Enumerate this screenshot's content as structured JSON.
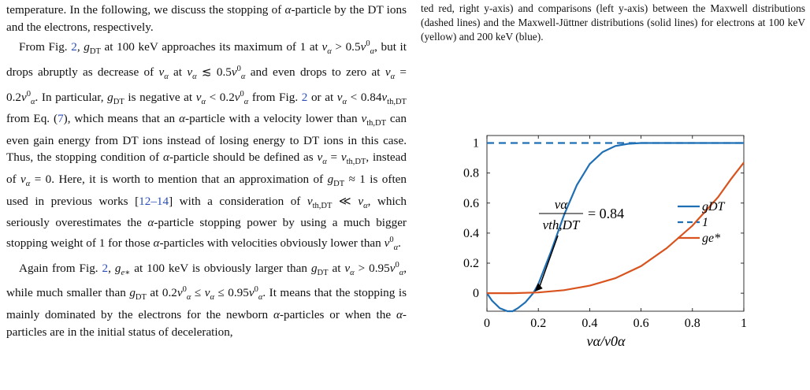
{
  "left_column": {
    "paragraphs": [
      {
        "id": "p0",
        "segments": [
          {
            "t": "temperature. In the following, we discuss the stopping of "
          },
          {
            "t": "α",
            "math": true
          },
          {
            "t": "-particle by the DT ions and the electrons, respectively."
          }
        ]
      },
      {
        "id": "p1",
        "segments": [
          {
            "t": "From Fig. "
          },
          {
            "t": "2",
            "link": true
          },
          {
            "t": ", "
          },
          {
            "t": "g",
            "math": true
          },
          {
            "t": "DT",
            "sub": true
          },
          {
            "t": " at 100 keV approaches its maximum of 1 at "
          },
          {
            "t": "v",
            "math": true
          },
          {
            "t": "α",
            "sub": true,
            "math": true
          },
          {
            "t": " > 0.5"
          },
          {
            "t": "v",
            "math": true
          },
          {
            "t": "0",
            "sup": true
          },
          {
            "t": "α",
            "sub": true,
            "math": true
          },
          {
            "t": ", but it drops abruptly as decrease of "
          },
          {
            "t": "v",
            "math": true
          },
          {
            "t": "α",
            "sub": true,
            "math": true
          },
          {
            "t": " at "
          },
          {
            "t": "v",
            "math": true
          },
          {
            "t": "α",
            "sub": true,
            "math": true
          },
          {
            "t": " ≲ 0.5"
          },
          {
            "t": "v",
            "math": true
          },
          {
            "t": "0",
            "sup": true
          },
          {
            "t": "α",
            "sub": true,
            "math": true
          },
          {
            "t": " and even drops to zero at "
          },
          {
            "t": "v",
            "math": true
          },
          {
            "t": "α",
            "sub": true,
            "math": true
          },
          {
            "t": " = 0.2"
          },
          {
            "t": "v",
            "math": true
          },
          {
            "t": "0",
            "sup": true
          },
          {
            "t": "α",
            "sub": true,
            "math": true
          },
          {
            "t": ". In particular, "
          },
          {
            "t": "g",
            "math": true
          },
          {
            "t": "DT",
            "sub": true
          },
          {
            "t": " is negative at "
          },
          {
            "t": "v",
            "math": true
          },
          {
            "t": "α",
            "sub": true,
            "math": true
          },
          {
            "t": " < 0.2"
          },
          {
            "t": "v",
            "math": true
          },
          {
            "t": "0",
            "sup": true
          },
          {
            "t": "α",
            "sub": true,
            "math": true
          },
          {
            "t": " from Fig. "
          },
          {
            "t": "2",
            "link": true
          },
          {
            "t": " or at "
          },
          {
            "t": "v",
            "math": true
          },
          {
            "t": "α",
            "sub": true,
            "math": true
          },
          {
            "t": " < 0.84"
          },
          {
            "t": "v",
            "math": true
          },
          {
            "t": "th,DT",
            "sub": true
          },
          {
            "t": " from Eq. ("
          },
          {
            "t": "7",
            "link": true
          },
          {
            "t": "), which means that an "
          },
          {
            "t": "α",
            "math": true
          },
          {
            "t": "-particle with a velocity lower than "
          },
          {
            "t": "v",
            "math": true
          },
          {
            "t": "th,DT",
            "sub": true
          },
          {
            "t": " can even gain energy from DT ions instead of losing energy to DT ions in this case. Thus, the stopping condition of "
          },
          {
            "t": "α",
            "math": true
          },
          {
            "t": "-particle should be defined as "
          },
          {
            "t": "v",
            "math": true
          },
          {
            "t": "α",
            "sub": true,
            "math": true
          },
          {
            "t": " = "
          },
          {
            "t": "v",
            "math": true
          },
          {
            "t": "th,DT",
            "sub": true
          },
          {
            "t": ", instead of "
          },
          {
            "t": "v",
            "math": true
          },
          {
            "t": "α",
            "sub": true,
            "math": true
          },
          {
            "t": " = 0. Here, it is worth to mention that an approximation of "
          },
          {
            "t": "g",
            "math": true
          },
          {
            "t": "DT",
            "sub": true
          },
          {
            "t": " ≈ 1 is often used in previous works ["
          },
          {
            "t": "12–14",
            "link": true
          },
          {
            "t": "] with a consideration of "
          },
          {
            "t": "v",
            "math": true
          },
          {
            "t": "th,DT",
            "sub": true
          },
          {
            "t": " ≪ "
          },
          {
            "t": "v",
            "math": true
          },
          {
            "t": "α",
            "sub": true,
            "math": true
          },
          {
            "t": ", which seriously overestimates the "
          },
          {
            "t": "α",
            "math": true
          },
          {
            "t": "-particle stopping power by using a much bigger stopping weight of 1 for those "
          },
          {
            "t": "α",
            "math": true
          },
          {
            "t": "-particles with velocities obviously lower than "
          },
          {
            "t": "v",
            "math": true
          },
          {
            "t": "0",
            "sup": true
          },
          {
            "t": "α",
            "sub": true,
            "math": true
          },
          {
            "t": "."
          }
        ]
      },
      {
        "id": "p2",
        "segments": [
          {
            "t": "Again from Fig. "
          },
          {
            "t": "2",
            "link": true
          },
          {
            "t": ", "
          },
          {
            "t": "g",
            "math": true
          },
          {
            "t": "e∗",
            "sub": true,
            "math": true
          },
          {
            "t": " at 100 keV is obviously larger than "
          },
          {
            "t": "g",
            "math": true
          },
          {
            "t": "DT",
            "sub": true
          },
          {
            "t": " at "
          },
          {
            "t": "v",
            "math": true
          },
          {
            "t": "α",
            "sub": true,
            "math": true
          },
          {
            "t": " > 0.95"
          },
          {
            "t": "v",
            "math": true
          },
          {
            "t": "0",
            "sup": true
          },
          {
            "t": "α",
            "sub": true,
            "math": true
          },
          {
            "t": ", while much smaller than "
          },
          {
            "t": "g",
            "math": true
          },
          {
            "t": "DT",
            "sub": true
          },
          {
            "t": " at 0.2"
          },
          {
            "t": "v",
            "math": true
          },
          {
            "t": "0",
            "sup": true
          },
          {
            "t": "α",
            "sub": true,
            "math": true
          },
          {
            "t": " ≤ "
          },
          {
            "t": "v",
            "math": true
          },
          {
            "t": "α",
            "sub": true,
            "math": true
          },
          {
            "t": " ≤ 0.95"
          },
          {
            "t": "v",
            "math": true
          },
          {
            "t": "0",
            "sup": true
          },
          {
            "t": "α",
            "sub": true,
            "math": true
          },
          {
            "t": ". It means that the stopping is mainly dominated by the electrons for the newborn "
          },
          {
            "t": "α",
            "math": true
          },
          {
            "t": "-particles or when the "
          },
          {
            "t": "α",
            "math": true
          },
          {
            "t": "-particles are in the initial status of deceleration,"
          }
        ]
      }
    ]
  },
  "right_caption": {
    "text": "ted red, right y-axis) and comparisons (left y-axis) between the Maxwell distributions (dashed lines) and the Maxwell-Jüttner distributions (solid lines) for electrons at 100 keV (yellow) and 200 keV (blue)."
  },
  "chart_data": {
    "type": "line",
    "xlabel": "vα/v0α",
    "xlim": [
      0,
      1
    ],
    "ylim": [
      -0.12,
      1.05
    ],
    "xticks": [
      0,
      0.2,
      0.4,
      0.6,
      0.8,
      1
    ],
    "xtick_labels": [
      "0",
      "0.2",
      "0.4",
      "0.6",
      "0.8",
      "1"
    ],
    "yticks": [
      0,
      0.2,
      0.4,
      0.6,
      0.8,
      1
    ],
    "ytick_labels": [
      "0",
      "0.2",
      "0.4",
      "0.6",
      "0.8",
      "1"
    ],
    "grid": false,
    "legend_position": "right",
    "series": [
      {
        "name": "gDT",
        "style": "solid",
        "color": "#1f6fb5",
        "x": [
          0,
          0.02,
          0.05,
          0.08,
          0.1,
          0.12,
          0.15,
          0.18,
          0.2,
          0.25,
          0.3,
          0.35,
          0.4,
          0.45,
          0.5,
          0.55,
          0.6,
          0.7,
          0.8,
          0.9,
          1.0
        ],
        "y": [
          0,
          -0.05,
          -0.1,
          -0.12,
          -0.12,
          -0.1,
          -0.06,
          0.0,
          0.06,
          0.28,
          0.52,
          0.72,
          0.86,
          0.94,
          0.98,
          0.995,
          1.0,
          1.0,
          1.0,
          1.0,
          1.0
        ]
      },
      {
        "name": "1",
        "style": "dashed",
        "color": "#1f6fb5",
        "x": [
          0,
          1
        ],
        "y": [
          1,
          1
        ]
      },
      {
        "name": "ge*",
        "style": "solid",
        "color": "#d9531e",
        "x": [
          0,
          0.1,
          0.2,
          0.3,
          0.4,
          0.5,
          0.6,
          0.7,
          0.8,
          0.9,
          0.95,
          1.0
        ],
        "y": [
          0,
          0.0,
          0.005,
          0.02,
          0.05,
          0.1,
          0.18,
          0.3,
          0.45,
          0.64,
          0.76,
          0.87
        ]
      }
    ],
    "legend": [
      {
        "label": "gDT",
        "series": 0
      },
      {
        "label": "1",
        "series": 1
      },
      {
        "label": "ge*",
        "series": 2
      }
    ],
    "annotation": {
      "text": "vα / vth,DT = 0.84",
      "numerator": "vα",
      "denominator": "vth,DT",
      "value": "= 0.84",
      "arrow_to": [
        0.18,
        0.0
      ]
    }
  }
}
